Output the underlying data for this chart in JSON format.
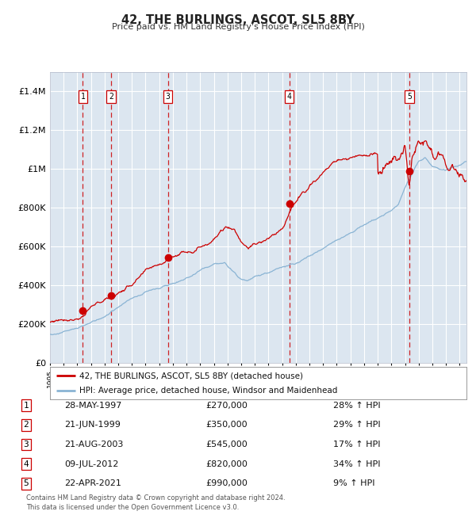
{
  "title": "42, THE BURLINGS, ASCOT, SL5 8BY",
  "subtitle": "Price paid vs. HM Land Registry's House Price Index (HPI)",
  "background_color": "#dce6f0",
  "plot_bg": "#dce6f0",
  "grid_color": "#ffffff",
  "red_line_color": "#cc0000",
  "blue_line_color": "#8ab4d4",
  "sale_marker_color": "#cc0000",
  "dashed_line_color": "#cc0000",
  "ylim": [
    0,
    1500000
  ],
  "yticks": [
    0,
    200000,
    400000,
    600000,
    800000,
    1000000,
    1200000,
    1400000
  ],
  "ytick_labels": [
    "£0",
    "£200K",
    "£400K",
    "£600K",
    "£800K",
    "£1M",
    "£1.2M",
    "£1.4M"
  ],
  "sales": [
    {
      "num": 1,
      "date_str": "28-MAY-1997",
      "date_num": 1997.4,
      "price": 270000,
      "pct": "28%",
      "dir": "↑"
    },
    {
      "num": 2,
      "date_str": "21-JUN-1999",
      "date_num": 1999.47,
      "price": 350000,
      "pct": "29%",
      "dir": "↑"
    },
    {
      "num": 3,
      "date_str": "21-AUG-2003",
      "date_num": 2003.64,
      "price": 545000,
      "pct": "17%",
      "dir": "↑"
    },
    {
      "num": 4,
      "date_str": "09-JUL-2012",
      "date_num": 2012.52,
      "price": 820000,
      "pct": "34%",
      "dir": "↑"
    },
    {
      "num": 5,
      "date_str": "22-APR-2021",
      "date_num": 2021.31,
      "price": 990000,
      "pct": "9%",
      "dir": "↑"
    }
  ],
  "legend_entries": [
    "42, THE BURLINGS, ASCOT, SL5 8BY (detached house)",
    "HPI: Average price, detached house, Windsor and Maidenhead"
  ],
  "footer": "Contains HM Land Registry data © Crown copyright and database right 2024.\nThis data is licensed under the Open Government Licence v3.0.",
  "xmin": 1995.0,
  "xmax": 2025.5,
  "row_data": [
    [
      "1",
      "28-MAY-1997",
      "£270,000",
      "28% ↑ HPI"
    ],
    [
      "2",
      "21-JUN-1999",
      "£350,000",
      "29% ↑ HPI"
    ],
    [
      "3",
      "21-AUG-2003",
      "£545,000",
      "17% ↑ HPI"
    ],
    [
      "4",
      "09-JUL-2012",
      "£820,000",
      "34% ↑ HPI"
    ],
    [
      "5",
      "22-APR-2021",
      "£990,000",
      "9% ↑ HPI"
    ]
  ]
}
